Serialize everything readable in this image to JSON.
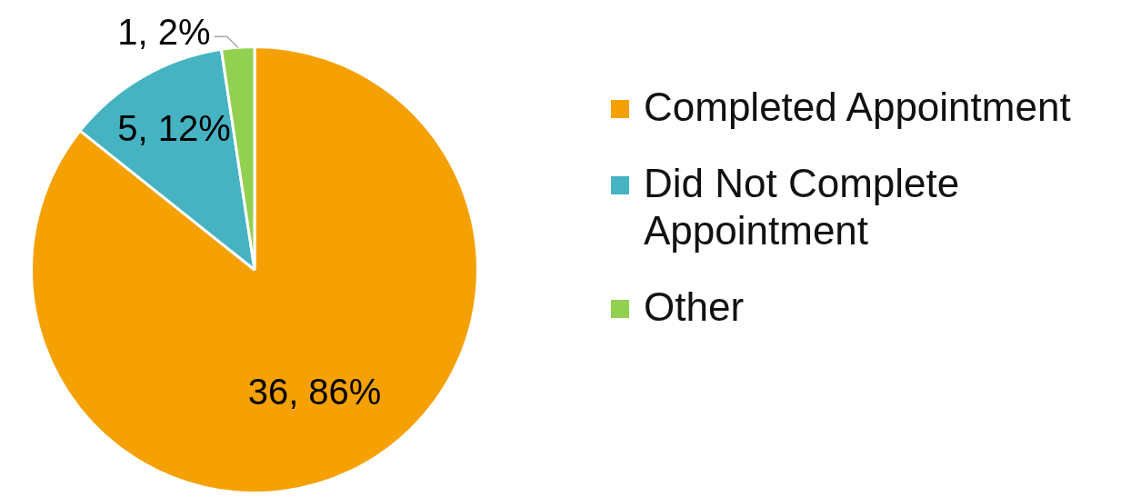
{
  "chart_data": {
    "type": "pie",
    "categories": [
      "Completed Appointment",
      "Did Not Complete Appointment",
      "Other"
    ],
    "values": [
      36,
      5,
      1
    ],
    "colors": [
      "#f5a104",
      "#45b3c2",
      "#92d050"
    ],
    "value_labels": [
      "36, 86%",
      "5, 12%",
      "1, 2%"
    ],
    "legend": "right"
  }
}
